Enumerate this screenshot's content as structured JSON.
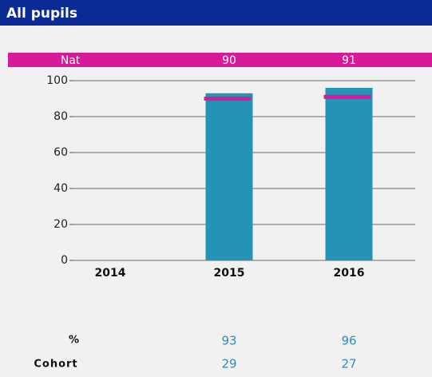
{
  "chart_data": {
    "type": "bar",
    "title": "All pupils",
    "categories": [
      "2014",
      "2015",
      "2016"
    ],
    "series": [
      {
        "name": "%",
        "color": "#2394b8",
        "values": [
          null,
          93,
          96
        ]
      }
    ],
    "national": {
      "name": "Nat",
      "color": "#d8199a",
      "values": [
        null,
        90,
        91
      ]
    },
    "cohort": {
      "name": "Cohort",
      "values": [
        null,
        29,
        27
      ]
    },
    "ylim": [
      0,
      100
    ],
    "yticks": [
      0,
      20,
      40,
      60,
      80,
      100
    ],
    "grid": true
  }
}
